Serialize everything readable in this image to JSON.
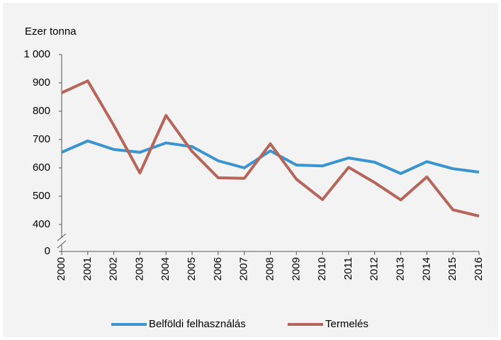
{
  "chart_data": {
    "type": "line",
    "y_axis_label": "Ezer tonna",
    "categories": [
      "2000",
      "2001",
      "2002",
      "2003",
      "2004",
      "2005",
      "2006",
      "2007",
      "2008",
      "2009",
      "2010",
      "2011",
      "2012",
      "2013",
      "2014",
      "2015",
      "2016"
    ],
    "series": [
      {
        "name": "Belföldi felhasználás",
        "color": "#3a94cf",
        "values": [
          655,
          695,
          665,
          655,
          688,
          675,
          625,
          600,
          660,
          610,
          607,
          635,
          620,
          580,
          622,
          597,
          585
        ]
      },
      {
        "name": "Termelés",
        "color": "#b5655a",
        "values": [
          865,
          907,
          750,
          582,
          785,
          658,
          565,
          563,
          685,
          560,
          488,
          602,
          548,
          487,
          568,
          452,
          430
        ]
      }
    ],
    "ylim": [
      0,
      1000
    ],
    "axis_break": [
      0,
      400
    ],
    "yticks": [
      0,
      400,
      500,
      600,
      700,
      800,
      900,
      {
        "value": 1000,
        "label": "1 000"
      }
    ],
    "grid": false,
    "legend": "bottom"
  }
}
